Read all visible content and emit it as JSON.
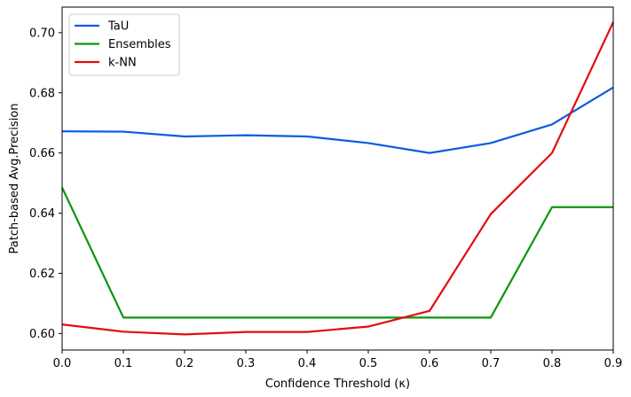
{
  "chart_data": {
    "type": "line",
    "title": "",
    "xlabel": "Confidence Threshold (κ)",
    "ylabel": "Patch-based Avg.Precision",
    "x": [
      0.0,
      0.1,
      0.2,
      0.3,
      0.4,
      0.5,
      0.6,
      0.7,
      0.8,
      0.9
    ],
    "xlim": [
      0.0,
      0.9
    ],
    "ylim": [
      0.5945,
      0.7085
    ],
    "xticks": [
      "0.0",
      "0.1",
      "0.2",
      "0.3",
      "0.4",
      "0.5",
      "0.6",
      "0.7",
      "0.8",
      "0.9"
    ],
    "yticks": [
      "0.60",
      "0.62",
      "0.64",
      "0.66",
      "0.68",
      "0.70"
    ],
    "grid": false,
    "legend_position": "top-left",
    "series": [
      {
        "name": "TaU",
        "color": "#0a5ce0",
        "values": [
          0.6672,
          0.6671,
          0.6655,
          0.6659,
          0.6655,
          0.6633,
          0.66,
          0.6633,
          0.6695,
          0.6818
        ]
      },
      {
        "name": "Ensembles",
        "color": "#0a970a",
        "values": [
          0.6485,
          0.6053,
          0.6053,
          0.6053,
          0.6053,
          0.6053,
          0.6053,
          0.6053,
          0.642,
          0.642
        ]
      },
      {
        "name": "k-NN",
        "color": "#e40c0c",
        "values": [
          0.603,
          0.6006,
          0.5997,
          0.6005,
          0.6005,
          0.6023,
          0.6075,
          0.6397,
          0.66,
          0.7035
        ]
      }
    ]
  }
}
